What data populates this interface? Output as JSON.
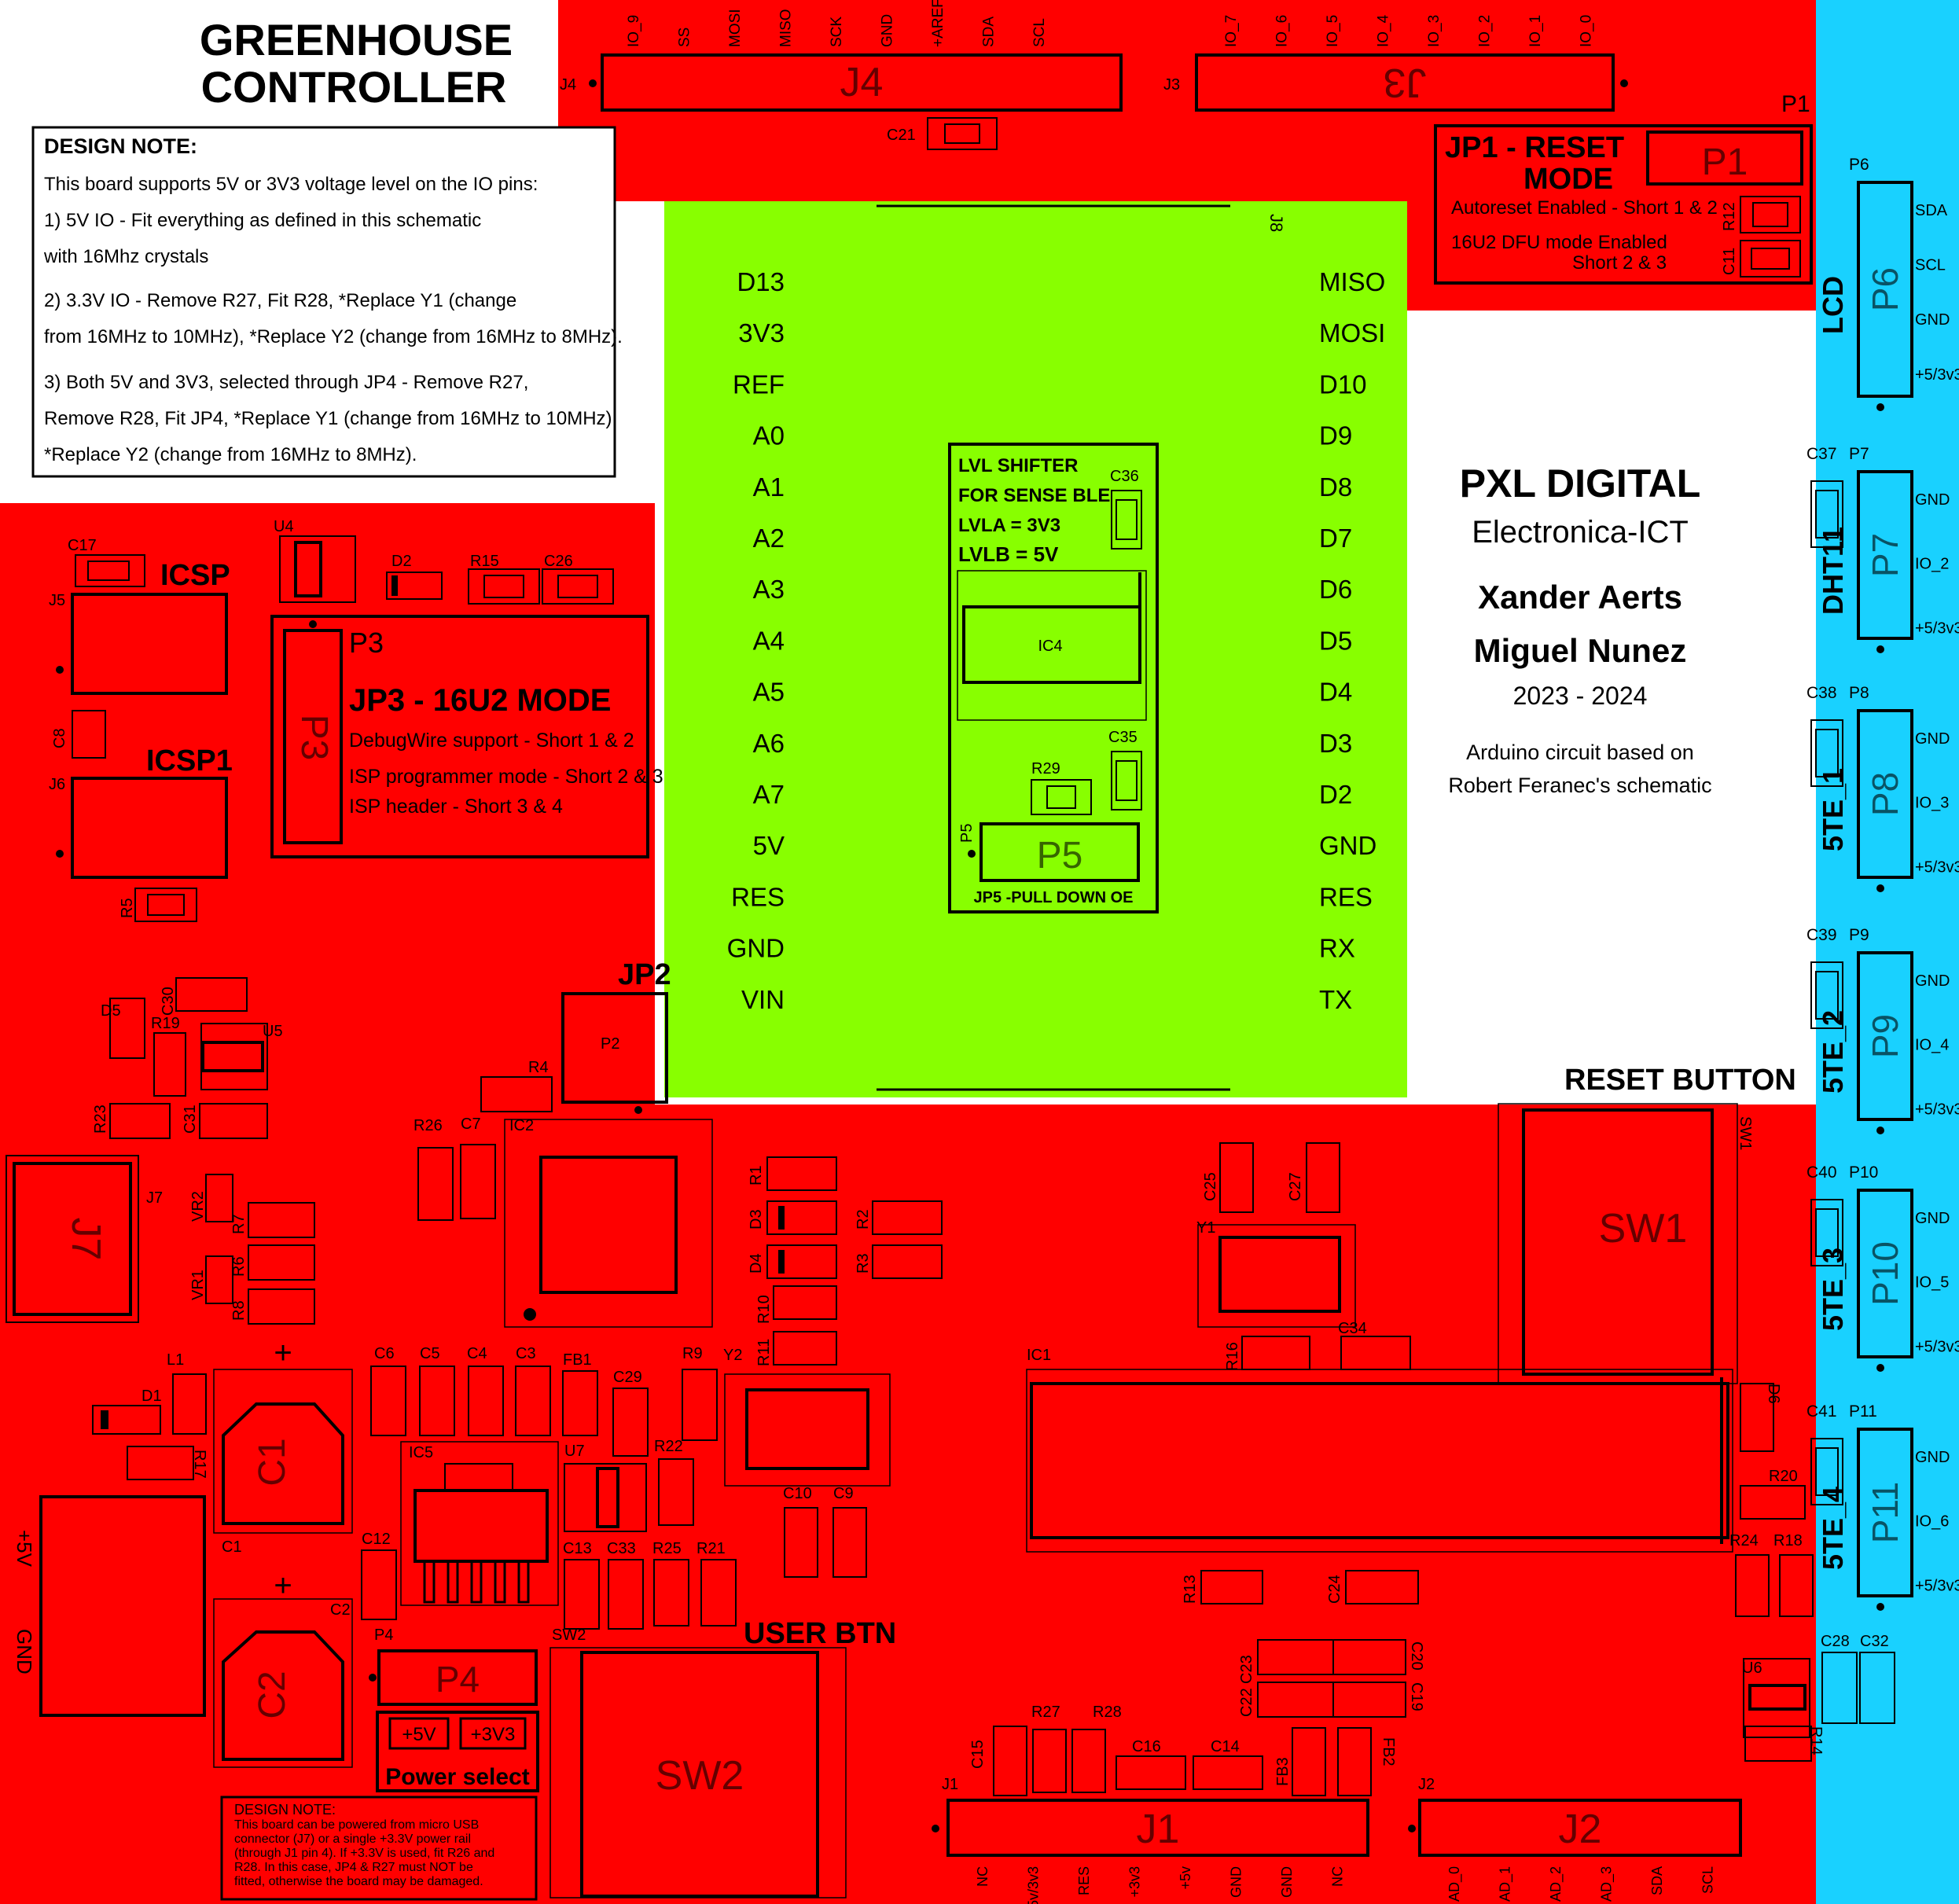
{
  "colors": {
    "red": "#ff0000",
    "green": "#88ff00",
    "cyan": "#19d1ff",
    "white": "#ffffff",
    "ink": "#000000"
  },
  "title": {
    "line1": "GREENHOUSE",
    "line2": "CONTROLLER"
  },
  "design_note": {
    "heading": "DESIGN NOTE:",
    "lines": [
      "This board supports 5V or 3V3 voltage level on the IO pins:",
      "1) 5V IO - Fit everything as defined in this schematic",
      "with 16Mhz crystals",
      "2) 3.3V IO - Remove R27, Fit R28, *Replace Y1 (change",
      "from 16MHz to 10MHz), *Replace Y2 (change from 16MHz to 8MHz).",
      "3) Both 5V and 3V3, selected through JP4 - Remove R27,",
      "Remove R28, Fit JP4, *Replace Y1 (change from 16MHz to 10MHz),",
      "*Replace Y2 (change from 16MHz to 8MHz)."
    ]
  },
  "j4": {
    "label": "J4",
    "ref": "J4",
    "pins": [
      "IO_9",
      "SS",
      "MOSI",
      "MISO",
      "SCK",
      "GND",
      "+AREF",
      "SDA",
      "SCL"
    ]
  },
  "j3": {
    "label": "J3",
    "ref": "J3",
    "pins": [
      "IO_7",
      "IO_6",
      "IO_5",
      "IO_4",
      "IO_3",
      "IO_2",
      "IO_1",
      "IO_0"
    ]
  },
  "c21": "C21",
  "jp1": {
    "p1": "P1",
    "title1": "JP1 - RESET",
    "title2": "MODE",
    "line1": "Autoreset Enabled - Short 1 & 2",
    "line2": "16U2 DFU mode Enabled",
    "line3": "Short 2 & 3",
    "r12": "R12",
    "c11": "C11"
  },
  "arduino": {
    "j8": "J8",
    "left_pins": [
      "D13",
      "3V3",
      "REF",
      "A0",
      "A1",
      "A2",
      "A3",
      "A4",
      "A5",
      "A6",
      "A7",
      "5V",
      "RES",
      "GND",
      "VIN"
    ],
    "right_pins": [
      "MISO",
      "MOSI",
      "D10",
      "D9",
      "D8",
      "D7",
      "D6",
      "D5",
      "D4",
      "D3",
      "D2",
      "GND",
      "RES",
      "RX",
      "TX"
    ]
  },
  "lvl": {
    "line1": "LVL SHIFTER",
    "line2": "FOR SENSE BLE",
    "line3": "LVLA = 3V3",
    "line4": "LVLB = 5V",
    "c36": "C36",
    "ic4": "IC4",
    "c35": "C35",
    "r29": "R29",
    "p5": "P5",
    "jp5": "JP5 -PULL DOWN OE"
  },
  "credits": {
    "org": "PXL DIGITAL",
    "dept": "Electronica-ICT",
    "author1": "Xander Aerts",
    "author2": "Miguel Nunez",
    "years": "2023 - 2024",
    "note1": "Arduino circuit based on",
    "note2": "Robert Feranec's schematic"
  },
  "sensors": [
    {
      "ref": "P6",
      "label": "LCD",
      "cap": "",
      "pins": [
        "SDA",
        "SCL",
        "GND",
        "+5/3v3"
      ]
    },
    {
      "ref": "P7",
      "label": "DHT11",
      "cap": "C37",
      "pins": [
        "GND",
        "IO_2",
        "+5/3v3"
      ]
    },
    {
      "ref": "P8",
      "label": "5TE_1",
      "cap": "C38",
      "pins": [
        "GND",
        "IO_3",
        "+5/3v3"
      ]
    },
    {
      "ref": "P9",
      "label": "5TE_2",
      "cap": "C39",
      "pins": [
        "GND",
        "IO_4",
        "+5/3v3"
      ]
    },
    {
      "ref": "P10",
      "label": "5TE_3",
      "cap": "C40",
      "pins": [
        "GND",
        "IO_5",
        "+5/3v3"
      ]
    },
    {
      "ref": "P11",
      "label": "5TE_4",
      "cap": "C41",
      "pins": [
        "GND",
        "IO_6",
        "+5/3v3"
      ]
    }
  ],
  "left": {
    "icsp": "ICSP",
    "icsp1": "ICSP1",
    "c17": "C17",
    "u4": "U4",
    "d2": "D2",
    "r15": "R15",
    "c26": "C26",
    "j5": "J5",
    "j6": "J6",
    "c8": "C8",
    "r5": "R5",
    "p3": "P3",
    "jp3_title": "JP3 - 16U2 MODE",
    "jp3_l1": "DebugWire support - Short 1 & 2",
    "jp3_l2": "ISP programmer mode - Short 2 & 3",
    "jp3_l3": "ISP header - Short 3 & 4"
  },
  "bottom": {
    "jp2": "JP2",
    "p2": "P2",
    "reset_button": "RESET BUTTON",
    "sw1": "SW1",
    "sw2": "SW2",
    "user_btn": "USER BTN",
    "d5": "D5",
    "c30": "C30",
    "r19": "R19",
    "u5": "U5",
    "r23": "R23",
    "c31": "C31",
    "r4": "R4",
    "r26": "R26",
    "c7": "C7",
    "ic2": "IC2",
    "r1": "R1",
    "d3": "D3",
    "r2": "R2",
    "d4": "D4",
    "r3": "R3",
    "r10": "R10",
    "r11": "R11",
    "j7": "J7",
    "vr2": "VR2",
    "vr1": "VR1",
    "r7": "R7",
    "r6": "R6",
    "r8": "R8",
    "c25": "C25",
    "c27": "C27",
    "y1": "Y1",
    "c34": "C34",
    "r16": "R16",
    "ic1": "IC1",
    "d6": "D6",
    "r20": "R20",
    "r24": "R24",
    "r18": "R18",
    "r13": "R13",
    "c24": "C24",
    "l1": "L1",
    "d1": "D1",
    "r17": "R17",
    "c1": "C1",
    "c2": "C2",
    "plus": "+",
    "c6": "C6",
    "c5": "C5",
    "c4": "C4",
    "c3": "C3",
    "fb1": "FB1",
    "c29": "C29",
    "r9": "R9",
    "y2": "Y2",
    "r22": "R22",
    "ic5": "IC5",
    "u7": "U7",
    "c10": "C10",
    "c9": "C9",
    "c12": "C12",
    "c13": "C13",
    "c33": "C33",
    "r25": "R25",
    "r21": "R21",
    "p4": "P4",
    "v5": "+5V",
    "v33": "+3V3",
    "power_select": "Power select",
    "c23": "C23",
    "c22": "C22",
    "c20": "C20",
    "c19": "C19",
    "r27": "R27",
    "r28": "R28",
    "c15": "C15",
    "c16": "C16",
    "c14": "C14",
    "fb3": "FB3",
    "fb2": "FB2",
    "u6": "U6",
    "c28": "C28",
    "c32": "C32",
    "r14": "R14",
    "plus5v": "+5V",
    "gnd": "GND",
    "note_heading": "DESIGN NOTE:",
    "note_lines": [
      "This board can be powered from micro USB",
      "connector (J7) or a single +3.3V power rail",
      "(through J1 pin 4). If +3.3V is used, fit R26 and",
      "R28. In this case, JP4 & R27 must NOT be",
      "fitted, otherwise the board may be damaged."
    ],
    "j1": {
      "ref": "J1",
      "pins": [
        "NC",
        "+5v/3v3",
        "RES",
        "+3v3",
        "+5v",
        "GND",
        "GND",
        "NC"
      ]
    },
    "j2": {
      "ref": "J2",
      "pins": [
        "AD_0",
        "AD_1",
        "AD_2",
        "AD_3",
        "SDA",
        "SCL"
      ]
    }
  }
}
